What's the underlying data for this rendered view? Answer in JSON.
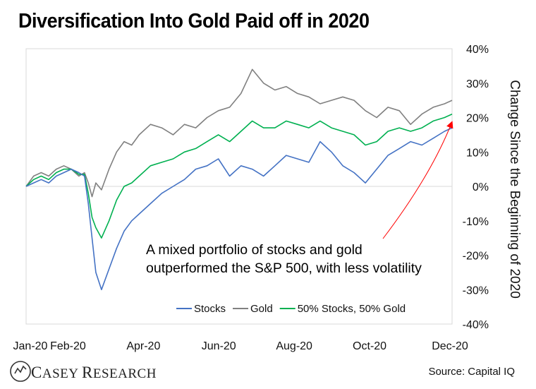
{
  "title": "Diversification Into Gold Paid off in 2020",
  "source": "Source: Capital IQ",
  "logo": {
    "first": "C",
    "first_rest": "ASEY",
    "second": "R",
    "second_rest": "ESEARCH"
  },
  "colors": {
    "stocks": "#4472C4",
    "gold": "#808080",
    "mixed": "#00B050",
    "arrow": "#FF0000",
    "border": "#D9D9D9",
    "zero_line": "#D9D9D9"
  },
  "chart_data": {
    "type": "line",
    "title": "Diversification Into Gold Paid off in 2020",
    "xlabel": "",
    "ylabel": "Change Since the Beginning of 2020",
    "x_tick_labels": [
      "Jan-20",
      "Feb-20",
      "Apr-20",
      "Jun-20",
      "Aug-20",
      "Oct-20",
      "Dec-20"
    ],
    "x_tick_month_index": [
      0,
      1,
      3,
      5,
      7,
      9,
      11
    ],
    "x_range_months": [
      0,
      11.3
    ],
    "ylim": [
      -0.4,
      0.4
    ],
    "y_ticks": [
      0.4,
      0.3,
      0.2,
      0.1,
      0,
      -0.1,
      -0.2,
      -0.3,
      -0.4
    ],
    "y_tick_labels": [
      "40%",
      "30%",
      "20%",
      "10%",
      "0%",
      "-10%",
      "-20%",
      "-30%",
      "-40%"
    ],
    "series": [
      {
        "name": "Stocks",
        "color_key": "stocks",
        "x": [
          0,
          0.2,
          0.4,
          0.6,
          0.8,
          1.0,
          1.2,
          1.4,
          1.55,
          1.65,
          1.75,
          1.85,
          2.0,
          2.2,
          2.4,
          2.6,
          2.8,
          3.0,
          3.3,
          3.6,
          3.9,
          4.2,
          4.5,
          4.8,
          5.1,
          5.4,
          5.7,
          6.0,
          6.3,
          6.6,
          6.9,
          7.2,
          7.5,
          7.8,
          8.1,
          8.4,
          8.7,
          9.0,
          9.3,
          9.6,
          9.9,
          10.2,
          10.5,
          10.8,
          11.1,
          11.3
        ],
        "values": [
          0,
          0.01,
          0.02,
          0.01,
          0.03,
          0.04,
          0.05,
          0.04,
          0.03,
          -0.05,
          -0.15,
          -0.25,
          -0.3,
          -0.24,
          -0.18,
          -0.13,
          -0.1,
          -0.08,
          -0.05,
          -0.02,
          0.0,
          0.02,
          0.05,
          0.06,
          0.08,
          0.03,
          0.06,
          0.05,
          0.03,
          0.06,
          0.09,
          0.08,
          0.07,
          0.13,
          0.1,
          0.06,
          0.04,
          0.01,
          0.05,
          0.09,
          0.11,
          0.13,
          0.12,
          0.14,
          0.16,
          0.17
        ]
      },
      {
        "name": "Gold",
        "color_key": "gold",
        "x": [
          0,
          0.2,
          0.4,
          0.6,
          0.8,
          1.0,
          1.2,
          1.4,
          1.55,
          1.65,
          1.75,
          1.85,
          2.0,
          2.2,
          2.4,
          2.6,
          2.8,
          3.0,
          3.3,
          3.6,
          3.9,
          4.2,
          4.5,
          4.8,
          5.1,
          5.4,
          5.7,
          6.0,
          6.3,
          6.6,
          6.9,
          7.2,
          7.5,
          7.8,
          8.1,
          8.4,
          8.7,
          9.0,
          9.3,
          9.6,
          9.9,
          10.2,
          10.5,
          10.8,
          11.1,
          11.3
        ],
        "values": [
          0,
          0.03,
          0.04,
          0.03,
          0.05,
          0.06,
          0.05,
          0.03,
          0.04,
          0.01,
          -0.03,
          0.01,
          -0.01,
          0.05,
          0.1,
          0.13,
          0.12,
          0.15,
          0.18,
          0.17,
          0.15,
          0.18,
          0.17,
          0.2,
          0.22,
          0.23,
          0.27,
          0.34,
          0.3,
          0.28,
          0.29,
          0.27,
          0.26,
          0.24,
          0.25,
          0.26,
          0.25,
          0.22,
          0.2,
          0.23,
          0.22,
          0.18,
          0.21,
          0.23,
          0.24,
          0.25
        ]
      },
      {
        "name": "50% Stocks, 50% Gold",
        "color_key": "mixed",
        "x": [
          0,
          0.2,
          0.4,
          0.6,
          0.8,
          1.0,
          1.2,
          1.4,
          1.55,
          1.65,
          1.75,
          1.85,
          2.0,
          2.2,
          2.4,
          2.6,
          2.8,
          3.0,
          3.3,
          3.6,
          3.9,
          4.2,
          4.5,
          4.8,
          5.1,
          5.4,
          5.7,
          6.0,
          6.3,
          6.6,
          6.9,
          7.2,
          7.5,
          7.8,
          8.1,
          8.4,
          8.7,
          9.0,
          9.3,
          9.6,
          9.9,
          10.2,
          10.5,
          10.8,
          11.1,
          11.3
        ],
        "values": [
          0,
          0.02,
          0.03,
          0.02,
          0.04,
          0.05,
          0.05,
          0.035,
          0.035,
          -0.02,
          -0.09,
          -0.12,
          -0.15,
          -0.1,
          -0.04,
          0.0,
          0.01,
          0.03,
          0.06,
          0.07,
          0.08,
          0.1,
          0.11,
          0.13,
          0.15,
          0.13,
          0.16,
          0.19,
          0.17,
          0.17,
          0.19,
          0.18,
          0.17,
          0.19,
          0.17,
          0.16,
          0.15,
          0.12,
          0.13,
          0.16,
          0.17,
          0.16,
          0.17,
          0.19,
          0.2,
          0.21
        ]
      }
    ],
    "legend_position": "bottom-right",
    "annotation": {
      "lines": [
        "A mixed portfolio of stocks and gold",
        "outperformed the S&P 500, with less volatility"
      ],
      "arrow_to_series": "50% Stocks, 50% Gold"
    }
  }
}
